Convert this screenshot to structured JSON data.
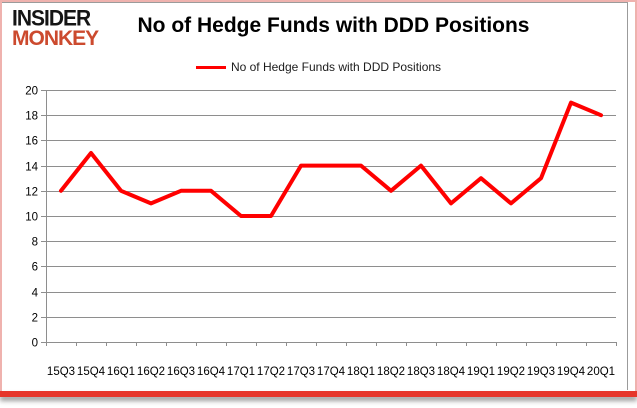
{
  "logo": {
    "line1": "INSIDER",
    "line2": "MONKEY"
  },
  "header": {
    "title": "No of Hedge Funds with DDD Positions"
  },
  "legend": {
    "label": "No of Hedge Funds with DDD Positions"
  },
  "chart_data": {
    "type": "line",
    "title": "No of Hedge Funds with DDD Positions",
    "categories": [
      "15Q3",
      "15Q4",
      "16Q1",
      "16Q2",
      "16Q3",
      "16Q4",
      "17Q1",
      "17Q2",
      "17Q3",
      "17Q4",
      "18Q1",
      "18Q2",
      "18Q3",
      "18Q4",
      "19Q1",
      "19Q2",
      "19Q3",
      "19Q4",
      "20Q1"
    ],
    "series": [
      {
        "name": "No of Hedge Funds with DDD Positions",
        "color": "#ff0000",
        "values": [
          12,
          15,
          12,
          11,
          12,
          12,
          10,
          10,
          14,
          14,
          14,
          12,
          14,
          11,
          13,
          11,
          13,
          19,
          18
        ]
      }
    ],
    "ylim": [
      0,
      20
    ],
    "ytick_step": 2,
    "grid": true,
    "legend_position": "top",
    "xlabel": "",
    "ylabel": ""
  },
  "colors": {
    "series_red": "#ff0000",
    "grid_gray": "#8e8e8e",
    "axis_gray": "#8e8e8e",
    "logo_red": "#cc4a2e",
    "border_pink": "#efb2ae",
    "bottom_bar_red": "#e6362b",
    "label_black": "#000000"
  }
}
